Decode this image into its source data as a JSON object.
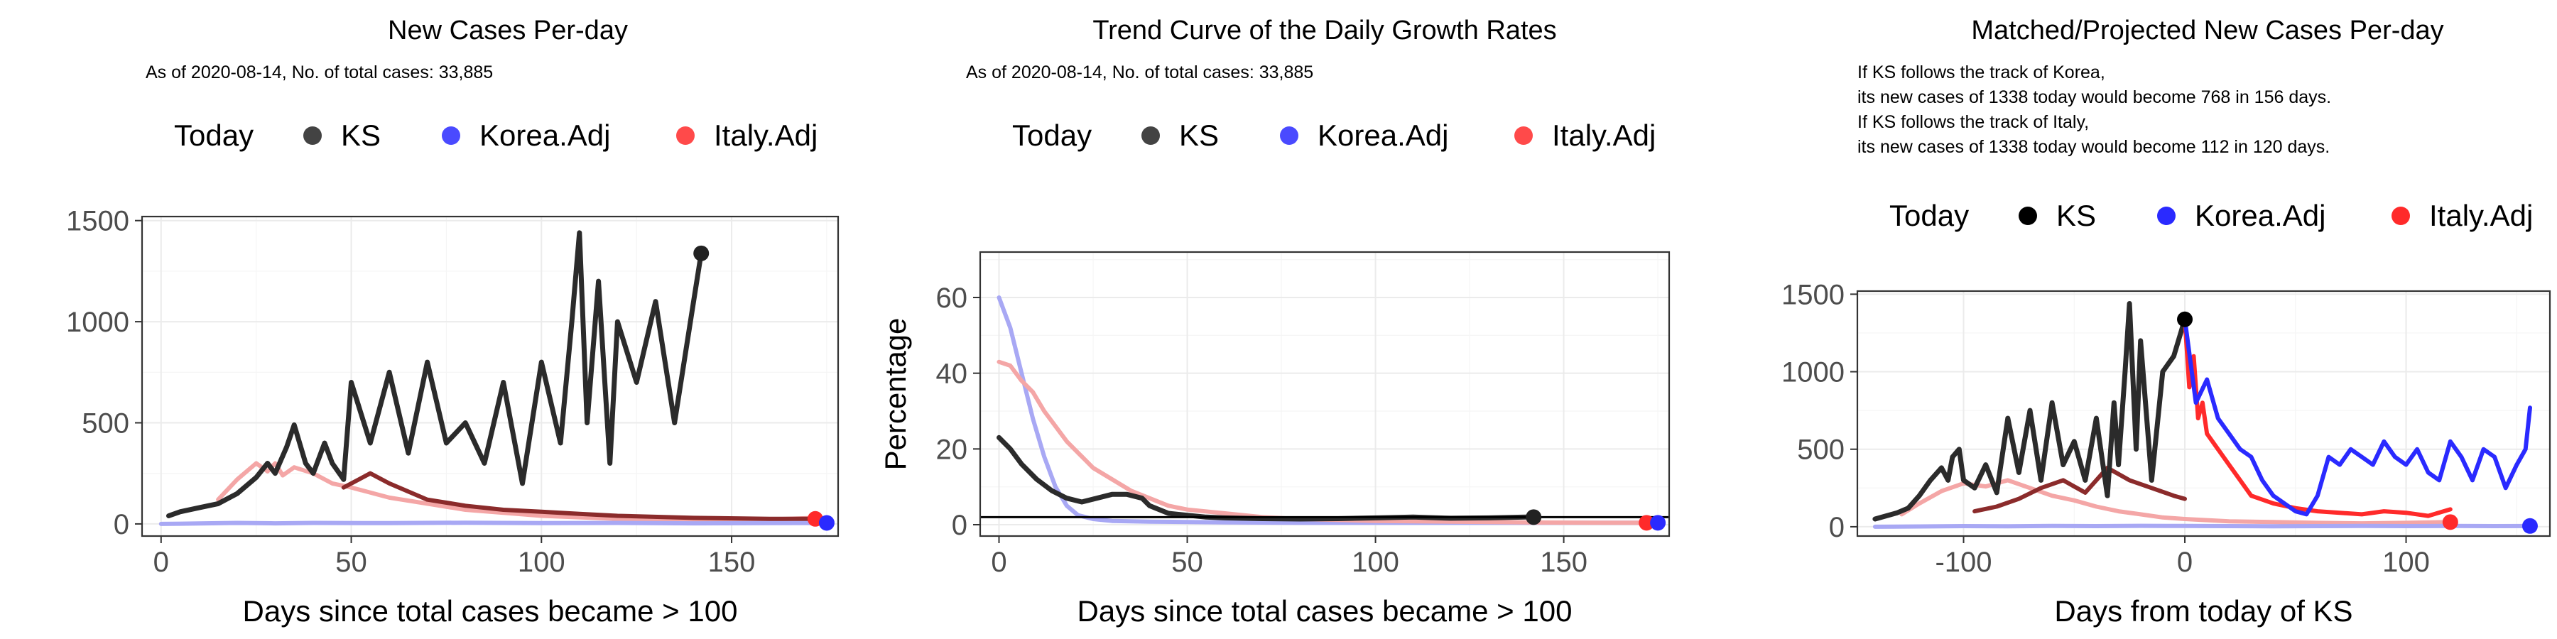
{
  "chart_data": [
    {
      "type": "line",
      "title": "New Cases Per-day",
      "subtitle": "As of 2020-08-14, No. of total cases: 33,885",
      "xlabel": "Days since total cases became > 100",
      "ylabel": "",
      "xlim": [
        -5,
        178
      ],
      "ylim": [
        -60,
        1520
      ],
      "xticks": [
        0,
        50,
        100,
        150
      ],
      "yticks": [
        0,
        500,
        1000,
        1500
      ],
      "grid": true,
      "legend": {
        "title": "Today",
        "entries": [
          "KS",
          "Korea.Adj",
          "Italy.Adj"
        ],
        "position": "top"
      },
      "series": [
        {
          "name": "Italy.Adj",
          "color": "#f4a6a6",
          "x": [
            15,
            20,
            25,
            28,
            30,
            32,
            35,
            40,
            45,
            50,
            60,
            70,
            80,
            100,
            120,
            140,
            160,
            172
          ],
          "y": [
            120,
            220,
            300,
            260,
            300,
            240,
            280,
            250,
            200,
            180,
            130,
            100,
            70,
            40,
            25,
            20,
            22,
            30
          ]
        },
        {
          "name": "Korea.Adj",
          "color": "#a8a8f4",
          "x": [
            0,
            10,
            20,
            30,
            40,
            60,
            80,
            100,
            120,
            140,
            160,
            175
          ],
          "y": [
            0,
            2,
            5,
            3,
            5,
            4,
            6,
            4,
            5,
            3,
            4,
            5
          ]
        },
        {
          "name": "Italy.Adj (projected)",
          "color": "#8b2b2b",
          "x": [
            48,
            55,
            60,
            70,
            80,
            90,
            100,
            110,
            120,
            140,
            160,
            172
          ],
          "y": [
            180,
            250,
            200,
            120,
            90,
            70,
            60,
            50,
            40,
            30,
            25,
            25
          ]
        },
        {
          "name": "KS",
          "color": "#2b2b2b",
          "x": [
            2,
            5,
            10,
            15,
            20,
            25,
            28,
            30,
            33,
            35,
            38,
            40,
            43,
            45,
            48,
            50,
            55,
            60,
            65,
            70,
            75,
            80,
            85,
            90,
            95,
            100,
            105,
            108,
            110,
            112,
            115,
            118,
            120,
            125,
            130,
            135,
            140,
            142
          ],
          "y": [
            40,
            60,
            80,
            100,
            150,
            230,
            300,
            250,
            380,
            490,
            300,
            250,
            400,
            300,
            220,
            700,
            400,
            750,
            350,
            800,
            400,
            500,
            300,
            700,
            200,
            800,
            400,
            1000,
            1440,
            500,
            1200,
            300,
            1000,
            700,
            1100,
            500,
            1100,
            1338
          ]
        }
      ],
      "today": [
        {
          "series": "KS",
          "x": 142,
          "y": 1338,
          "color": "#222222"
        },
        {
          "series": "Italy.Adj",
          "x": 172,
          "y": 25,
          "color": "#ff2a2a"
        },
        {
          "series": "Korea.Adj",
          "x": 175,
          "y": 5,
          "color": "#2a2aff"
        }
      ]
    },
    {
      "type": "line",
      "title": "Trend Curve of the Daily Growth Rates",
      "subtitle": "As of 2020-08-14, No. of total cases: 33,885",
      "xlabel": "Days since total cases became > 100",
      "ylabel": "Percentage",
      "xlim": [
        -5,
        178
      ],
      "ylim": [
        -3,
        72
      ],
      "xticks": [
        0,
        50,
        100,
        150
      ],
      "yticks": [
        0,
        20,
        40,
        60
      ],
      "hline": 2,
      "grid": true,
      "legend": {
        "title": "Today",
        "entries": [
          "KS",
          "Korea.Adj",
          "Italy.Adj"
        ],
        "position": "top"
      },
      "series": [
        {
          "name": "Korea.Adj",
          "color": "#a8a8f4",
          "x": [
            0,
            3,
            6,
            9,
            12,
            15,
            18,
            21,
            25,
            30,
            40,
            60,
            80,
            100,
            120,
            140,
            160,
            175
          ],
          "y": [
            60,
            52,
            40,
            28,
            18,
            10,
            5,
            2.5,
            1.5,
            1,
            0.8,
            0.6,
            0.5,
            0.5,
            0.5,
            0.5,
            0.5,
            0.5
          ]
        },
        {
          "name": "Italy.Adj",
          "color": "#f4a6a6",
          "x": [
            0,
            3,
            6,
            9,
            12,
            15,
            18,
            21,
            25,
            30,
            35,
            40,
            45,
            50,
            60,
            70,
            80,
            100,
            120,
            140,
            160,
            172
          ],
          "y": [
            43,
            42,
            38,
            35,
            30,
            26,
            22,
            19,
            15,
            12,
            9,
            7,
            5,
            4,
            3,
            2,
            1.5,
            1,
            0.8,
            0.6,
            0.5,
            0.5
          ]
        },
        {
          "name": "KS",
          "color": "#2b2b2b",
          "x": [
            0,
            3,
            6,
            10,
            14,
            18,
            22,
            26,
            30,
            34,
            38,
            40,
            45,
            50,
            55,
            60,
            70,
            80,
            90,
            100,
            110,
            120,
            130,
            140,
            142
          ],
          "y": [
            23,
            20,
            16,
            12,
            9,
            7,
            6,
            7,
            8,
            8,
            7,
            5,
            3,
            2.5,
            2,
            1.8,
            1.6,
            1.5,
            1.6,
            1.8,
            2,
            1.7,
            1.8,
            2,
            2
          ]
        }
      ],
      "today": [
        {
          "series": "KS",
          "x": 142,
          "y": 2,
          "color": "#222222"
        },
        {
          "series": "Italy.Adj",
          "x": 172,
          "y": 0.5,
          "color": "#ff2a2a"
        },
        {
          "series": "Korea.Adj",
          "x": 175,
          "y": 0.5,
          "color": "#2a2aff"
        }
      ]
    },
    {
      "type": "line",
      "title": "Matched/Projected New Cases Per-day",
      "annotation": [
        "If KS follows the track of Korea,",
        "its new cases of 1338 today would become 768 in 156 days.",
        "If KS follows the track of Italy,",
        "its new cases of 1338 today would become 112 in 120 days."
      ],
      "xlabel": "Days from today of KS",
      "ylabel": "",
      "xlim": [
        -148,
        165
      ],
      "ylim": [
        -60,
        1520
      ],
      "xticks": [
        -100,
        0,
        100
      ],
      "yticks": [
        0,
        500,
        1000,
        1500
      ],
      "grid": true,
      "legend": {
        "title": "Today",
        "entries": [
          "KS",
          "Korea.Adj",
          "Italy.Adj"
        ],
        "position": "top"
      },
      "series": [
        {
          "name": "Italy.Adj (past)",
          "color": "#f4a6a6",
          "x": [
            -128,
            -120,
            -110,
            -100,
            -90,
            -80,
            -70,
            -60,
            -50,
            -40,
            -30,
            -20,
            -10,
            0,
            20,
            40,
            60,
            80,
            100,
            120
          ],
          "y": [
            80,
            150,
            230,
            280,
            260,
            300,
            250,
            200,
            170,
            130,
            100,
            80,
            60,
            50,
            35,
            30,
            25,
            22,
            25,
            30
          ]
        },
        {
          "name": "Italy.Adj (matched)",
          "color": "#8b2b2b",
          "x": [
            -95,
            -85,
            -75,
            -65,
            -55,
            -45,
            -35,
            -25,
            -15,
            -5,
            0
          ],
          "y": [
            100,
            130,
            180,
            250,
            300,
            220,
            380,
            300,
            250,
            200,
            180
          ]
        },
        {
          "name": "Korea.Adj",
          "color": "#a8a8f4",
          "x": [
            -140,
            -120,
            -100,
            -80,
            -60,
            -40,
            -20,
            0,
            20,
            40,
            60,
            80,
            100,
            120,
            140,
            156
          ],
          "y": [
            0,
            2,
            4,
            3,
            5,
            4,
            6,
            5,
            4,
            3,
            4,
            5,
            4,
            5,
            4,
            5
          ]
        },
        {
          "name": "KS",
          "color": "#2b2b2b",
          "x": [
            -140,
            -135,
            -130,
            -125,
            -120,
            -115,
            -110,
            -107,
            -105,
            -102,
            -100,
            -95,
            -90,
            -85,
            -80,
            -75,
            -70,
            -65,
            -60,
            -55,
            -50,
            -45,
            -40,
            -35,
            -32,
            -30,
            -27,
            -25,
            -22,
            -20,
            -15,
            -10,
            -5,
            0
          ],
          "y": [
            50,
            70,
            90,
            120,
            200,
            300,
            380,
            300,
            450,
            500,
            300,
            250,
            400,
            220,
            700,
            350,
            750,
            300,
            800,
            400,
            550,
            300,
            700,
            200,
            800,
            400,
            1000,
            1440,
            500,
            1200,
            300,
            1000,
            1100,
            1338
          ]
        },
        {
          "name": "Italy.Adj (projected)",
          "color": "#ff2a2a",
          "x": [
            0,
            2,
            4,
            6,
            8,
            10,
            15,
            20,
            25,
            30,
            40,
            50,
            60,
            70,
            80,
            90,
            100,
            110,
            120
          ],
          "y": [
            1338,
            900,
            1100,
            700,
            800,
            600,
            500,
            400,
            300,
            200,
            150,
            120,
            100,
            90,
            80,
            100,
            90,
            70,
            112
          ]
        },
        {
          "name": "Korea.Adj (projected)",
          "color": "#2a2aff",
          "x": [
            0,
            5,
            10,
            15,
            20,
            25,
            30,
            35,
            40,
            45,
            50,
            55,
            60,
            65,
            70,
            75,
            80,
            85,
            90,
            95,
            100,
            105,
            110,
            115,
            120,
            125,
            130,
            135,
            140,
            145,
            150,
            154,
            156
          ],
          "y": [
            1338,
            800,
            950,
            700,
            600,
            500,
            450,
            300,
            200,
            150,
            100,
            80,
            200,
            450,
            400,
            500,
            450,
            400,
            550,
            450,
            400,
            500,
            350,
            300,
            550,
            450,
            300,
            500,
            450,
            250,
            400,
            500,
            768
          ]
        }
      ],
      "today": [
        {
          "series": "KS",
          "x": 0,
          "y": 1338,
          "color": "#000000"
        },
        {
          "series": "Italy.Adj",
          "x": 120,
          "y": 30,
          "color": "#ff2a2a"
        },
        {
          "series": "Korea.Adj",
          "x": 156,
          "y": 5,
          "color": "#2a2aff"
        }
      ]
    }
  ]
}
